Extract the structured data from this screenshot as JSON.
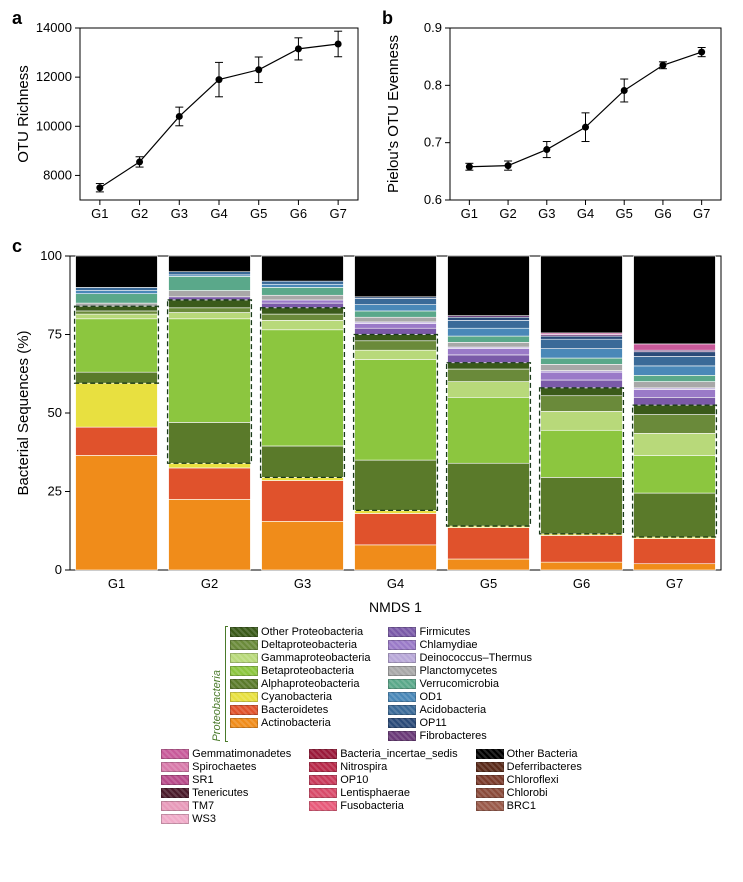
{
  "panel_a": {
    "label": "a",
    "type": "line-errorbar",
    "ylabel": "OTU Richness",
    "ylim": [
      7000,
      14000
    ],
    "yticks": [
      8000,
      10000,
      12000,
      14000
    ],
    "categories": [
      "G1",
      "G2",
      "G3",
      "G4",
      "G5",
      "G6",
      "G7"
    ],
    "values": [
      7500,
      8550,
      10400,
      11900,
      12300,
      13150,
      13350
    ],
    "err": [
      170,
      210,
      380,
      700,
      520,
      450,
      520
    ],
    "marker_color": "#000000",
    "line_color": "#000000",
    "background": "#ffffff"
  },
  "panel_b": {
    "label": "b",
    "type": "line-errorbar",
    "ylabel": "Pielou's OTU Evenness",
    "ylim": [
      0.6,
      0.9
    ],
    "yticks": [
      0.6,
      0.7,
      0.8,
      0.9
    ],
    "categories": [
      "G1",
      "G2",
      "G3",
      "G4",
      "G5",
      "G6",
      "G7"
    ],
    "values": [
      0.658,
      0.66,
      0.688,
      0.727,
      0.791,
      0.835,
      0.858
    ],
    "err": [
      0.006,
      0.008,
      0.014,
      0.025,
      0.02,
      0.006,
      0.008
    ],
    "marker_color": "#000000",
    "line_color": "#000000",
    "background": "#ffffff"
  },
  "panel_c": {
    "label": "c",
    "type": "stacked-bar",
    "ylabel": "Bacterial Sequences (%)",
    "xlabel": "NMDS 1",
    "ylim": [
      0,
      100
    ],
    "yticks": [
      0,
      25,
      50,
      75,
      100
    ],
    "categories": [
      "G1",
      "G2",
      "G3",
      "G4",
      "G5",
      "G6",
      "G7"
    ],
    "series_order": [
      "Actinobacteria",
      "Bacteroidetes",
      "Cyanobacteria",
      "Alphaproteobacteria",
      "Betaproteobacteria",
      "Gammaproteobacteria",
      "Deltaproteobacteria",
      "Other Proteobacteria",
      "Firmicutes",
      "Chlamydiae",
      "Deinococcus-Thermus",
      "Planctomycetes",
      "Verrucomicrobia",
      "OD1",
      "Acidobacteria",
      "OP11",
      "Fibrobacteres",
      "Gemmatimonadetes",
      "Spirochaetes",
      "SR1",
      "Tenericutes",
      "TM7",
      "WS3",
      "Bacteria_incertae_sedis",
      "Nitrospira",
      "OP10",
      "Lentisphaerae",
      "Fusobacteria",
      "Deferribacteres",
      "Chloroflexi",
      "Chlorobi",
      "BRC1",
      "Other Bacteria"
    ],
    "colors": {
      "Actinobacteria": "#f08c1a",
      "Bacteroidetes": "#e0522c",
      "Cyanobacteria": "#e8e040",
      "Alphaproteobacteria": "#5a7a2a",
      "Betaproteobacteria": "#8cc63f",
      "Gammaproteobacteria": "#b8d97a",
      "Deltaproteobacteria": "#6a8a3a",
      "Other Proteobacteria": "#3a5a1a",
      "Firmicutes": "#7a5aa8",
      "Chlamydiae": "#9a7ac8",
      "Deinococcus-Thermus": "#b8a8d8",
      "Planctomycetes": "#a8a8a8",
      "Verrucomicrobia": "#5aa88a",
      "OD1": "#4a88b8",
      "Acidobacteria": "#3a6a98",
      "OP11": "#2a4a78",
      "Fibrobacteres": "#6a3a78",
      "Gemmatimonadetes": "#c85a9a",
      "Spirochaetes": "#d87aaa",
      "SR1": "#b84a8a",
      "Tenericutes": "#4a1a2a",
      "TM7": "#e89aba",
      "WS3": "#f0aac8",
      "Bacteria_incertae_sedis": "#9a1a3a",
      "Nitrospira": "#b82a4a",
      "OP10": "#c83a5a",
      "Lentisphaerae": "#d84a6a",
      "Fusobacteria": "#e85a7a",
      "Deferribacteres": "#5a2a1a",
      "Chloroflexi": "#7a3a2a",
      "Chlorobi": "#8a4a3a",
      "BRC1": "#9a5a4a",
      "Other Bacteria": "#000000"
    },
    "data": {
      "G1": {
        "Actinobacteria": 36.5,
        "Bacteroidetes": 9.0,
        "Cyanobacteria": 14.0,
        "Alphaproteobacteria": 3.5,
        "Betaproteobacteria": 17.0,
        "Gammaproteobacteria": 1.5,
        "Deltaproteobacteria": 1.0,
        "Other Proteobacteria": 1.5,
        "Planctomycetes": 1.0,
        "Verrucomicrobia": 3.0,
        "OD1": 1.0,
        "Acidobacteria": 1.0,
        "Other Bacteria": 10.0
      },
      "G2": {
        "Actinobacteria": 22.5,
        "Bacteroidetes": 10.0,
        "Cyanobacteria": 1.5,
        "Alphaproteobacteria": 13.0,
        "Betaproteobacteria": 33.0,
        "Gammaproteobacteria": 2.0,
        "Deltaproteobacteria": 1.5,
        "Other Proteobacteria": 2.5,
        "Firmicutes": 1.0,
        "Planctomycetes": 2.0,
        "Verrucomicrobia": 4.5,
        "OD1": 0.5,
        "Acidobacteria": 1.0,
        "Other Bacteria": 5.0
      },
      "G3": {
        "Actinobacteria": 15.5,
        "Bacteroidetes": 13.0,
        "Cyanobacteria": 1.0,
        "Alphaproteobacteria": 10.0,
        "Betaproteobacteria": 37.0,
        "Gammaproteobacteria": 3.0,
        "Deltaproteobacteria": 2.0,
        "Other Proteobacteria": 2.0,
        "Firmicutes": 1.5,
        "Chlamydiae": 1.0,
        "Planctomycetes": 1.5,
        "Verrucomicrobia": 2.5,
        "OD1": 1.0,
        "Acidobacteria": 1.0,
        "Other Bacteria": 8.0
      },
      "G4": {
        "Actinobacteria": 8.0,
        "Bacteroidetes": 10.0,
        "Cyanobacteria": 1.0,
        "Alphaproteobacteria": 16.0,
        "Betaproteobacteria": 32.0,
        "Gammaproteobacteria": 3.0,
        "Deltaproteobacteria": 3.0,
        "Other Proteobacteria": 2.0,
        "Firmicutes": 2.0,
        "Chlamydiae": 1.5,
        "Deinococcus-Thermus": 0.5,
        "Planctomycetes": 1.5,
        "Verrucomicrobia": 2.0,
        "OD1": 2.0,
        "Acidobacteria": 2.0,
        "OP11": 0.5,
        "Other Bacteria": 13.0
      },
      "G5": {
        "Actinobacteria": 3.5,
        "Bacteroidetes": 10.0,
        "Cyanobacteria": 0.5,
        "Alphaproteobacteria": 20.0,
        "Betaproteobacteria": 21.0,
        "Gammaproteobacteria": 5.0,
        "Deltaproteobacteria": 4.0,
        "Other Proteobacteria": 2.0,
        "Firmicutes": 2.5,
        "Chlamydiae": 2.0,
        "Deinococcus-Thermus": 0.5,
        "Planctomycetes": 1.5,
        "Verrucomicrobia": 2.0,
        "OD1": 2.5,
        "Acidobacteria": 2.5,
        "OP11": 1.0,
        "Fibrobacteres": 0.5,
        "Other Bacteria": 19.0
      },
      "G6": {
        "Actinobacteria": 2.5,
        "Bacteroidetes": 8.5,
        "Cyanobacteria": 0.5,
        "Alphaproteobacteria": 18.0,
        "Betaproteobacteria": 15.0,
        "Gammaproteobacteria": 6.0,
        "Deltaproteobacteria": 5.0,
        "Other Proteobacteria": 2.5,
        "Firmicutes": 2.5,
        "Chlamydiae": 2.5,
        "Deinococcus-Thermus": 0.5,
        "Planctomycetes": 2.0,
        "Verrucomicrobia": 2.0,
        "OD1": 3.0,
        "Acidobacteria": 3.0,
        "OP11": 1.0,
        "Fibrobacteres": 0.5,
        "Gemmatimonadetes": 0.5,
        "Other Bacteria": 24.5
      },
      "G7": {
        "Actinobacteria": 2.0,
        "Bacteroidetes": 8.0,
        "Cyanobacteria": 0.5,
        "Alphaproteobacteria": 14.0,
        "Betaproteobacteria": 12.0,
        "Gammaproteobacteria": 7.0,
        "Deltaproteobacteria": 6.0,
        "Other Proteobacteria": 3.0,
        "Firmicutes": 2.5,
        "Chlamydiae": 2.5,
        "Deinococcus-Thermus": 0.5,
        "Planctomycetes": 2.0,
        "Verrucomicrobia": 2.0,
        "OD1": 3.0,
        "Acidobacteria": 3.0,
        "OP11": 1.5,
        "Fibrobacteres": 0.5,
        "Gemmatimonadetes": 2.0,
        "Other Bacteria": 28.0
      }
    },
    "proteo_box": [
      "Alphaproteobacteria",
      "Betaproteobacteria",
      "Gammaproteobacteria",
      "Deltaproteobacteria",
      "Other Proteobacteria"
    ],
    "bar_gap": 0.12,
    "background": "#ffffff"
  },
  "legend": {
    "proteo_label": "Proteobacteria",
    "block1": {
      "col1": [
        "Other Proteobacteria",
        "Deltaproteobacteria",
        "Gammaproteobacteria",
        "Betaproteobacteria",
        "Alphaproteobacteria",
        "Cyanobacteria",
        "Bacteroidetes",
        "Actinobacteria"
      ],
      "col2": [
        "Firmicutes",
        "Chlamydiae",
        "Deinococcus-Thermus",
        "Planctomycetes",
        "Verrucomicrobia",
        "OD1",
        "Acidobacteria",
        "OP11",
        "Fibrobacteres"
      ]
    },
    "block2": {
      "col1": [
        "Gemmatimonadetes",
        "Spirochaetes",
        "SR1",
        "Tenericutes",
        "TM7",
        "WS3"
      ],
      "col2": [
        "Bacteria_incertae_sedis",
        "Nitrospira",
        "OP10",
        "Lentisphaerae",
        "Fusobacteria"
      ],
      "col3": [
        "Other Bacteria",
        "Deferribacteres",
        "Chloroflexi",
        "Chlorobi",
        "BRC1"
      ]
    }
  }
}
